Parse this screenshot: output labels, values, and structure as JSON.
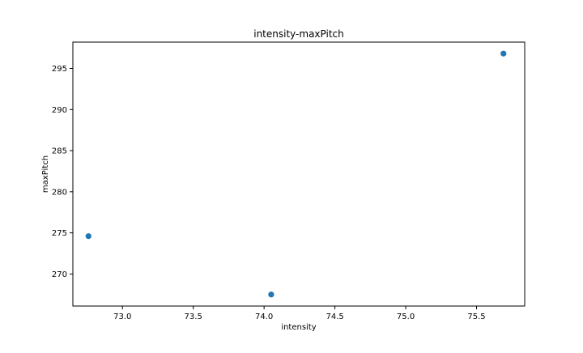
{
  "chart_data": {
    "type": "scatter",
    "title": "intensity-maxPitch",
    "xlabel": "intensity",
    "ylabel": "maxPitch",
    "xlim": [
      72.65,
      75.84
    ],
    "ylim": [
      266.1,
      298.2
    ],
    "x_ticks": [
      73.0,
      73.5,
      74.0,
      74.5,
      75.0,
      75.5
    ],
    "y_ticks": [
      270,
      275,
      280,
      285,
      290,
      295
    ],
    "x_tick_labels": [
      "73.0",
      "73.5",
      "74.0",
      "74.5",
      "75.0",
      "75.5"
    ],
    "y_tick_labels": [
      "270",
      "275",
      "280",
      "285",
      "290",
      "295"
    ],
    "points": [
      {
        "x": 72.76,
        "y": 274.6
      },
      {
        "x": 74.05,
        "y": 267.5
      },
      {
        "x": 75.69,
        "y": 296.8
      }
    ],
    "grid": false,
    "legend": "none",
    "marker_color": "#1f77b4"
  }
}
